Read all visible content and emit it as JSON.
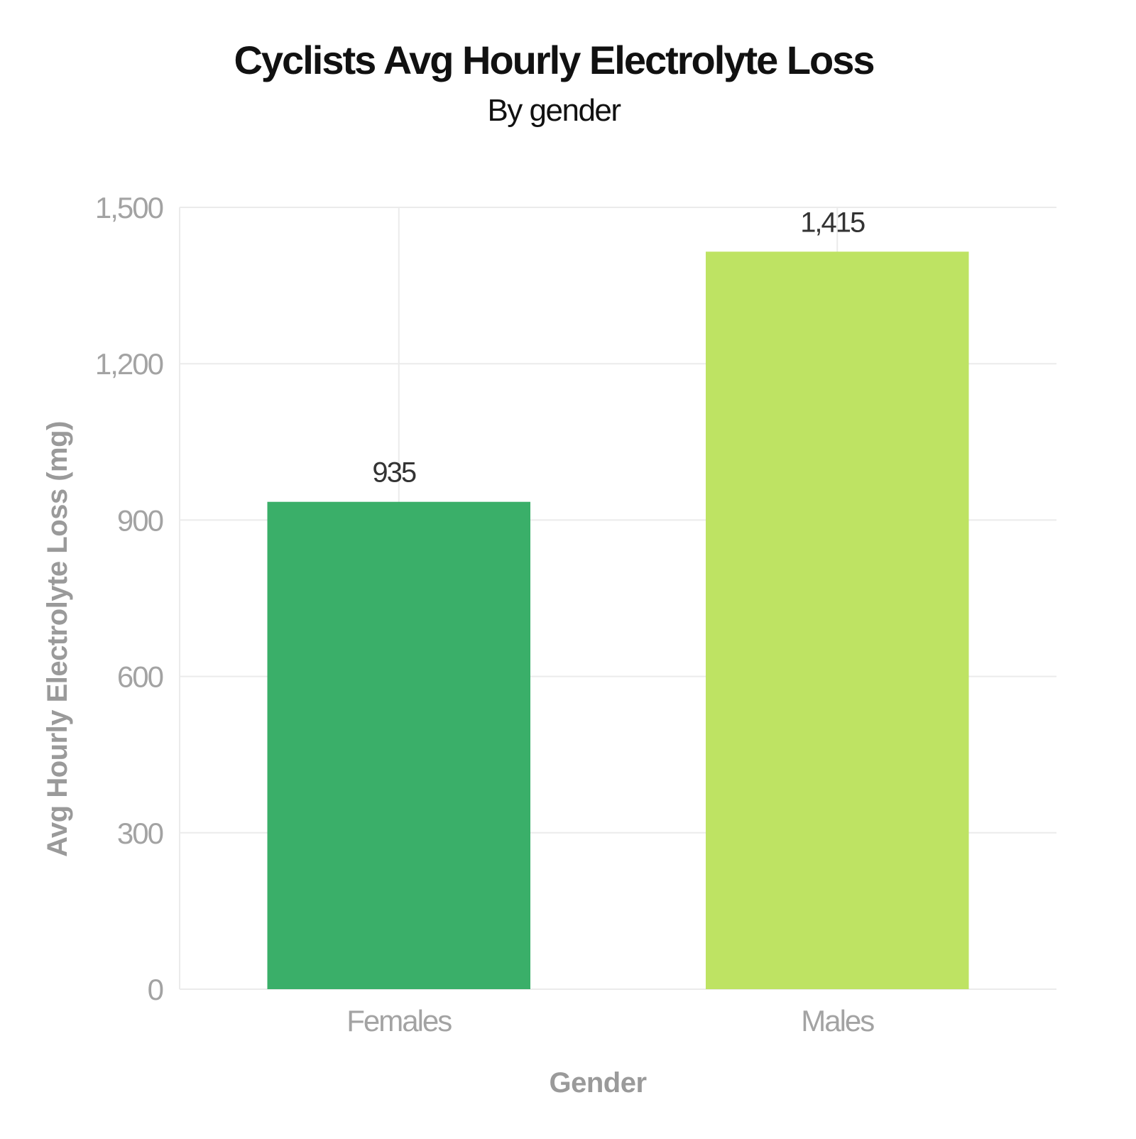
{
  "chart_data": {
    "type": "bar",
    "title": "Cyclists Avg Hourly Electrolyte Loss",
    "subtitle": "By gender",
    "xlabel": "Gender",
    "ylabel": "Avg Hourly Electrolyte Loss (mg)",
    "categories": [
      "Females",
      "Males"
    ],
    "values": [
      935,
      1415
    ],
    "value_labels": [
      "935",
      "1,415"
    ],
    "colors": [
      "#3AAF69",
      "#BEE363"
    ],
    "ylim": [
      0,
      1500
    ],
    "yticks": [
      0,
      300,
      600,
      900,
      1200,
      1500
    ],
    "ytick_labels": [
      "0",
      "300",
      "600",
      "900",
      "1,200",
      "1,500"
    ],
    "grid": true,
    "legend": "none"
  }
}
